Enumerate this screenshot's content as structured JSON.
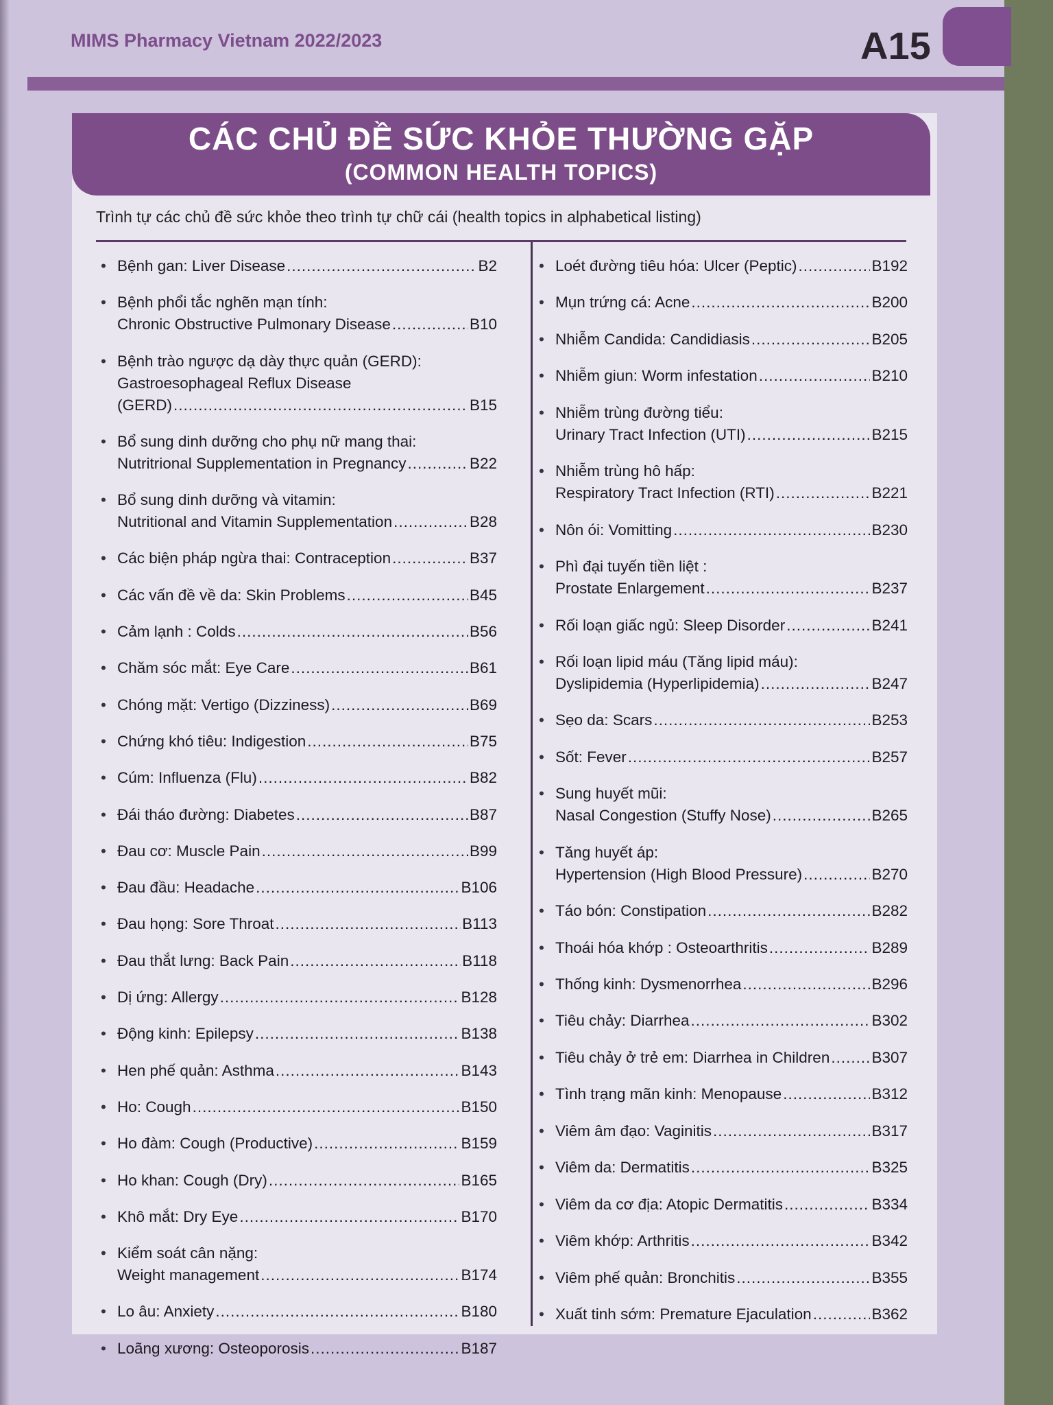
{
  "header": {
    "publication": "MIMS Pharmacy Vietnam 2022/2023",
    "page_code": "A15"
  },
  "title": {
    "vietnamese": "CÁC CHỦ ĐỀ SỨC KHỎE THƯỜNG GẶP",
    "english": "(COMMON HEALTH TOPICS)"
  },
  "subtitle": "Trình tự các chủ đề sức khỏe theo trình tự chữ cái (health topics in alphabetical listing)",
  "columns": [
    [
      {
        "lines": [
          "Bệnh gan: Liver Disease"
        ],
        "page": "B2"
      },
      {
        "lines": [
          "Bệnh phổi tắc nghẽn mạn tính:",
          "Chronic Obstructive Pulmonary Disease"
        ],
        "page": "B10"
      },
      {
        "lines": [
          "Bệnh trào ngược dạ dày thực quản (GERD):",
          "Gastroesophageal Reflux Disease",
          "(GERD)"
        ],
        "page": "B15"
      },
      {
        "lines": [
          "Bổ sung dinh dưỡng cho phụ nữ mang thai:",
          "Nutritrional Supplementation in Pregnancy"
        ],
        "page": "B22"
      },
      {
        "lines": [
          "Bổ sung dinh dưỡng và vitamin:",
          "Nutritional and Vitamin Supplementation"
        ],
        "page": "B28"
      },
      {
        "lines": [
          "Các biện pháp  ngừa thai: Contraception"
        ],
        "page": "B37"
      },
      {
        "lines": [
          "Các vấn đề về da: Skin Problems"
        ],
        "page": "B45"
      },
      {
        "lines": [
          "Cảm lạnh : Colds"
        ],
        "page": "B56"
      },
      {
        "lines": [
          "Chăm sóc mắt: Eye Care"
        ],
        "page": "B61"
      },
      {
        "lines": [
          "Chóng mặt: Vertigo (Dizziness)"
        ],
        "page": "B69"
      },
      {
        "lines": [
          "Chứng khó tiêu: Indigestion"
        ],
        "page": "B75"
      },
      {
        "lines": [
          "Cúm: Influenza (Flu)"
        ],
        "page": "B82"
      },
      {
        "lines": [
          "Đái tháo đường: Diabetes"
        ],
        "page": "B87"
      },
      {
        "lines": [
          "Đau cơ: Muscle Pain"
        ],
        "page": "B99"
      },
      {
        "lines": [
          "Đau đầu: Headache"
        ],
        "page": "B106"
      },
      {
        "lines": [
          "Đau họng: Sore Throat"
        ],
        "page": "B113"
      },
      {
        "lines": [
          "Đau thắt lưng: Back Pain"
        ],
        "page": "B118"
      },
      {
        "lines": [
          "Dị ứng: Allergy"
        ],
        "page": "B128"
      },
      {
        "lines": [
          "Động kinh: Epilepsy"
        ],
        "page": "B138"
      },
      {
        "lines": [
          "Hen phế quản: Asthma"
        ],
        "page": "B143"
      },
      {
        "lines": [
          "Ho: Cough"
        ],
        "page": "B150"
      },
      {
        "lines": [
          "Ho đàm: Cough (Productive)"
        ],
        "page": "B159"
      },
      {
        "lines": [
          "Ho khan: Cough (Dry)"
        ],
        "page": "B165"
      },
      {
        "lines": [
          "Khô mắt: Dry Eye"
        ],
        "page": "B170"
      },
      {
        "lines": [
          "Kiểm soát cân nặng:",
          "Weight management"
        ],
        "page": "B174"
      },
      {
        "lines": [
          "Lo âu: Anxiety"
        ],
        "page": "B180"
      },
      {
        "lines": [
          "Loãng xương: Osteoporosis"
        ],
        "page": "B187"
      }
    ],
    [
      {
        "lines": [
          "Loét đường tiêu hóa: Ulcer (Peptic)"
        ],
        "page": "B192"
      },
      {
        "lines": [
          "Mụn trứng cá: Acne"
        ],
        "page": "B200"
      },
      {
        "lines": [
          "Nhiễm Candida: Candidiasis"
        ],
        "page": "B205"
      },
      {
        "lines": [
          "Nhiễm giun: Worm infestation"
        ],
        "page": "B210"
      },
      {
        "lines": [
          "Nhiễm trùng đường tiểu:",
          "Urinary Tract Infection (UTI)"
        ],
        "page": "B215"
      },
      {
        "lines": [
          "Nhiễm trùng hô hấp:",
          "Respiratory Tract Infection (RTI)"
        ],
        "page": "B221"
      },
      {
        "lines": [
          "Nôn ói: Vomitting"
        ],
        "page": "B230"
      },
      {
        "lines": [
          "Phì đại tuyến tiền liệt :",
          "Prostate Enlargement"
        ],
        "page": "B237"
      },
      {
        "lines": [
          "Rối loạn giấc ngủ: Sleep Disorder"
        ],
        "page": "B241"
      },
      {
        "lines": [
          "Rối loạn lipid máu (Tăng lipid máu):",
          "Dyslipidemia (Hyperlipidemia)"
        ],
        "page": "B247"
      },
      {
        "lines": [
          "Sẹo da: Scars"
        ],
        "page": "B253"
      },
      {
        "lines": [
          "Sốt: Fever"
        ],
        "page": "B257"
      },
      {
        "lines": [
          "Sung huyết mũi:",
          "Nasal Congestion (Stuffy Nose)"
        ],
        "page": "B265"
      },
      {
        "lines": [
          "Tăng huyết áp:",
          "Hypertension (High Blood Pressure)"
        ],
        "page": "B270"
      },
      {
        "lines": [
          "Táo bón: Constipation"
        ],
        "page": "B282"
      },
      {
        "lines": [
          "Thoái hóa khớp : Osteoarthritis"
        ],
        "page": "B289"
      },
      {
        "lines": [
          "Thống kinh: Dysmenorrhea"
        ],
        "page": "B296"
      },
      {
        "lines": [
          "Tiêu chảy: Diarrhea"
        ],
        "page": "B302"
      },
      {
        "lines": [
          "Tiêu chảy ở trẻ em: Diarrhea in Children"
        ],
        "page": "B307"
      },
      {
        "lines": [
          "Tình trạng mãn kinh: Menopause"
        ],
        "page": "B312"
      },
      {
        "lines": [
          "Viêm âm đạo: Vaginitis"
        ],
        "page": "B317"
      },
      {
        "lines": [
          "Viêm da: Dermatitis"
        ],
        "page": "B325"
      },
      {
        "lines": [
          "Viêm da cơ địa: Atopic Dermatitis"
        ],
        "page": "B334"
      },
      {
        "lines": [
          "Viêm khớp: Arthritis"
        ],
        "page": "B342"
      },
      {
        "lines": [
          "Viêm phế quản: Bronchitis"
        ],
        "page": "B355"
      },
      {
        "lines": [
          "Xuất tinh sớm: Premature Ejaculation"
        ],
        "page": "B362"
      }
    ]
  ]
}
